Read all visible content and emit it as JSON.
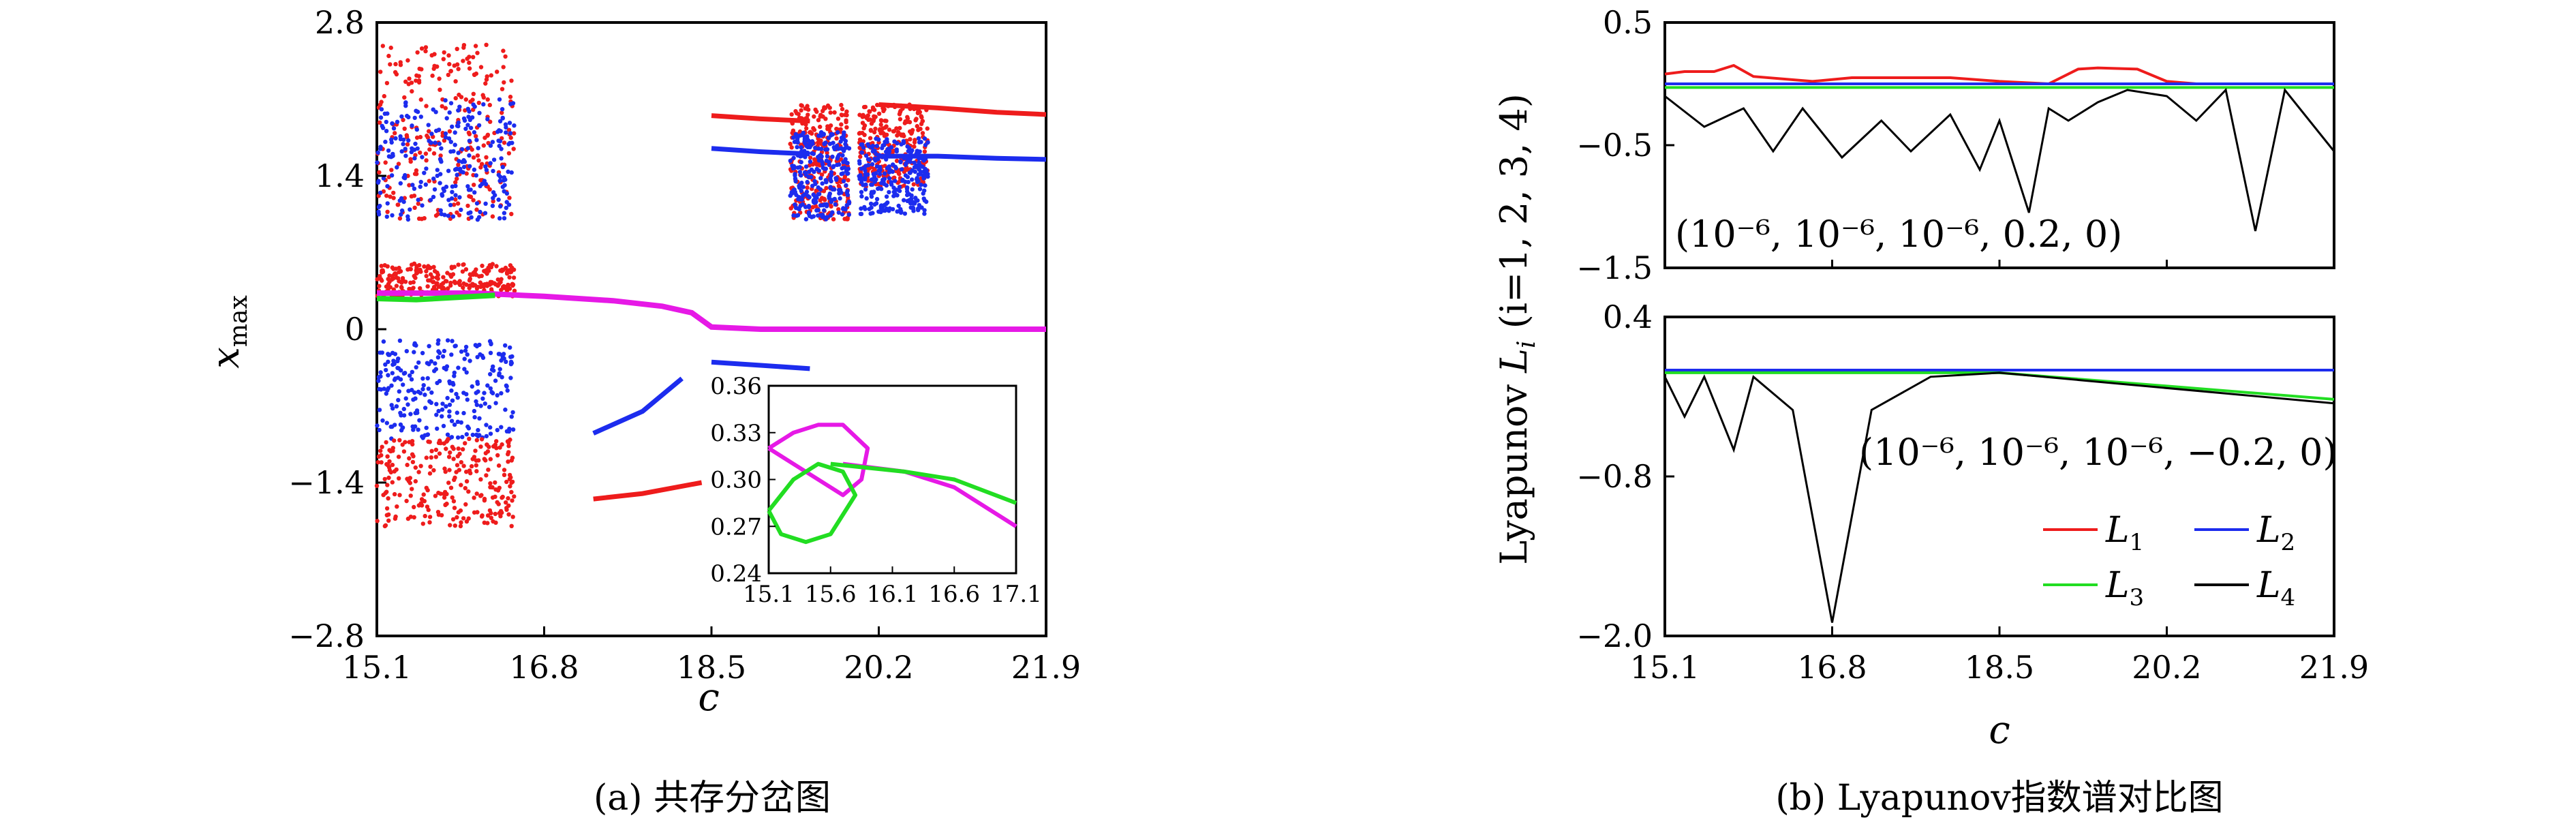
{
  "chart_data": [
    {
      "panel": "a",
      "type": "scatter",
      "caption": "(a) 共存分岔图",
      "xlabel": "c",
      "ylabel_main": "x",
      "ylabel_sub": "max",
      "xlim": [
        15.1,
        21.9
      ],
      "ylim": [
        -2.8,
        2.8
      ],
      "xticks": [
        "15.1",
        "16.8",
        "18.5",
        "20.2",
        "21.9"
      ],
      "yticks": [
        "2.8",
        "1.4",
        "0",
        "−1.4",
        "−2.8"
      ],
      "series_colors": {
        "red": "#ee1c1c",
        "blue": "#1c2cee",
        "green": "#22dd22",
        "magenta": "#e619e6"
      },
      "fixed_point_branches": [
        {
          "color": "magenta",
          "x": [
            15.1,
            15.6,
            16.1,
            16.8,
            17.5,
            18.0,
            18.3,
            18.5,
            19.0,
            21.9
          ],
          "y": [
            0.33,
            0.33,
            0.33,
            0.3,
            0.26,
            0.21,
            0.15,
            0.02,
            0.0,
            0.0
          ]
        },
        {
          "color": "green",
          "x": [
            15.1,
            15.5,
            15.9,
            16.3
          ],
          "y": [
            0.28,
            0.27,
            0.29,
            0.31
          ]
        }
      ],
      "periodic_branches": [
        {
          "color": "red",
          "x": [
            20.2,
            20.8,
            21.4,
            21.9
          ],
          "y": [
            2.05,
            2.02,
            1.98,
            1.96
          ]
        },
        {
          "color": "blue",
          "x": [
            20.2,
            20.8,
            21.4,
            21.9
          ],
          "y": [
            1.58,
            1.58,
            1.56,
            1.55
          ]
        },
        {
          "color": "red",
          "x": [
            18.5,
            19.0,
            19.5
          ],
          "y": [
            1.95,
            1.92,
            1.9
          ]
        },
        {
          "color": "blue",
          "x": [
            18.5,
            19.0,
            19.5
          ],
          "y": [
            1.65,
            1.62,
            1.6
          ]
        },
        {
          "color": "blue",
          "x": [
            18.5,
            19.0,
            19.5
          ],
          "y": [
            -0.3,
            -0.33,
            -0.36
          ]
        },
        {
          "color": "red",
          "x": [
            17.3,
            17.8,
            18.4
          ],
          "y": [
            -1.55,
            -1.5,
            -1.4
          ]
        },
        {
          "color": "blue",
          "x": [
            17.3,
            17.8,
            18.2
          ],
          "y": [
            -0.95,
            -0.75,
            -0.45
          ]
        }
      ],
      "chaotic_bands": [
        {
          "color": "red",
          "x_range": [
            15.1,
            16.5
          ],
          "y_range": [
            1.0,
            2.6
          ]
        },
        {
          "color": "blue",
          "x_range": [
            15.1,
            16.5
          ],
          "y_range": [
            1.0,
            2.1
          ]
        },
        {
          "color": "red",
          "x_range": [
            15.1,
            16.5
          ],
          "y_range": [
            0.3,
            0.6
          ]
        },
        {
          "color": "blue",
          "x_range": [
            15.1,
            16.5
          ],
          "y_range": [
            -1.0,
            -0.1
          ]
        },
        {
          "color": "red",
          "x_range": [
            15.1,
            16.5
          ],
          "y_range": [
            -1.8,
            -1.0
          ]
        },
        {
          "color": "red",
          "x_range": [
            19.3,
            19.9
          ],
          "y_range": [
            1.0,
            2.05
          ]
        },
        {
          "color": "blue",
          "x_range": [
            19.3,
            19.9
          ],
          "y_range": [
            1.0,
            1.8
          ]
        },
        {
          "color": "red",
          "x_range": [
            20.0,
            20.7
          ],
          "y_range": [
            1.3,
            2.05
          ]
        },
        {
          "color": "blue",
          "x_range": [
            20.0,
            20.7
          ],
          "y_range": [
            1.05,
            1.75
          ]
        }
      ],
      "inset": {
        "xlim": [
          15.1,
          17.1
        ],
        "ylim": [
          0.24,
          0.36
        ],
        "xticks": [
          "15.1",
          "15.6",
          "16.1",
          "16.6",
          "17.1"
        ],
        "yticks": [
          "0.36",
          "0.33",
          "0.30",
          "0.27",
          "0.24"
        ],
        "series": [
          {
            "color": "magenta",
            "x": [
              15.1,
              15.3,
              15.5,
              15.7,
              15.9,
              15.85,
              15.7,
              15.5,
              15.3,
              15.1
            ],
            "y": [
              0.32,
              0.33,
              0.335,
              0.335,
              0.32,
              0.3,
              0.29,
              0.3,
              0.31,
              0.32
            ]
          },
          {
            "color": "magenta",
            "x": [
              15.7,
              16.2,
              16.6,
              17.1
            ],
            "y": [
              0.31,
              0.305,
              0.295,
              0.27
            ]
          },
          {
            "color": "green",
            "x": [
              15.1,
              15.2,
              15.4,
              15.6,
              15.8,
              15.7,
              15.5,
              15.3,
              15.1
            ],
            "y": [
              0.28,
              0.265,
              0.26,
              0.265,
              0.29,
              0.305,
              0.31,
              0.3,
              0.28
            ]
          },
          {
            "color": "green",
            "x": [
              15.6,
              16.2,
              16.6,
              17.1
            ],
            "y": [
              0.31,
              0.305,
              0.3,
              0.285
            ]
          }
        ]
      }
    },
    {
      "panel": "b",
      "type": "line",
      "caption": "(b) Lyapunov指数谱对比图",
      "xlabel": "c",
      "ylabel_prefix": "Lyapunov ",
      "ylabel_math": "L",
      "ylabel_sub": "i",
      "ylabel_suffix": " (i=1, 2, 3, 4)",
      "xlim": [
        15.1,
        21.9
      ],
      "xticks": [
        "15.1",
        "16.8",
        "18.5",
        "20.2",
        "21.9"
      ],
      "top": {
        "ylim": [
          -1.5,
          0.5
        ],
        "yticks": [
          "0.5",
          "−0.5",
          "−1.5"
        ],
        "annotation": "(10⁻⁶, 10⁻⁶, 10⁻⁶, 0.2, 0)",
        "series": [
          {
            "name": "L1",
            "color": "#ee1c1c",
            "x": [
              15.1,
              15.3,
              15.6,
              15.8,
              16.0,
              16.6,
              17.0,
              17.5,
              18.0,
              18.5,
              19.0,
              19.3,
              19.5,
              19.9,
              20.2,
              20.5,
              21.0,
              21.9
            ],
            "y": [
              0.08,
              0.1,
              0.1,
              0.15,
              0.06,
              0.02,
              0.05,
              0.05,
              0.05,
              0.02,
              0.0,
              0.12,
              0.13,
              0.12,
              0.02,
              0.0,
              0.0,
              0.0
            ]
          },
          {
            "name": "L2",
            "color": "#1c2cee",
            "x": [
              15.1,
              21.9
            ],
            "y": [
              0.0,
              0.0
            ]
          },
          {
            "name": "L3",
            "color": "#22dd22",
            "x": [
              15.1,
              21.9
            ],
            "y": [
              -0.03,
              -0.03
            ]
          },
          {
            "name": "L4",
            "color": "#000000",
            "x": [
              15.1,
              15.5,
              15.9,
              16.2,
              16.5,
              16.9,
              17.3,
              17.6,
              18.0,
              18.3,
              18.5,
              18.8,
              19.0,
              19.2,
              19.5,
              19.8,
              20.2,
              20.5,
              20.8,
              21.1,
              21.4,
              21.9
            ],
            "y": [
              -0.1,
              -0.35,
              -0.2,
              -0.55,
              -0.2,
              -0.6,
              -0.3,
              -0.55,
              -0.25,
              -0.7,
              -0.3,
              -1.05,
              -0.2,
              -0.3,
              -0.15,
              -0.05,
              -0.1,
              -0.3,
              -0.05,
              -1.2,
              -0.05,
              -0.55
            ]
          }
        ]
      },
      "bottom": {
        "ylim": [
          -2.0,
          0.4
        ],
        "yticks": [
          "0.4",
          "−0.8",
          "−2.0"
        ],
        "annotation": "(10⁻⁶, 10⁻⁶, 10⁻⁶, −0.2, 0)",
        "series": [
          {
            "name": "L1",
            "color": "#ee1c1c",
            "x": [
              15.1,
              18.5
            ],
            "y": [
              0.0,
              0.0
            ]
          },
          {
            "name": "L2",
            "color": "#1c2cee",
            "x": [
              15.1,
              21.9
            ],
            "y": [
              0.0,
              0.0
            ]
          },
          {
            "name": "L3",
            "color": "#22dd22",
            "x": [
              15.1,
              18.5,
              21.9
            ],
            "y": [
              -0.02,
              -0.02,
              -0.22
            ]
          },
          {
            "name": "L4",
            "color": "#000000",
            "x": [
              15.1,
              15.3,
              15.5,
              15.8,
              16.0,
              16.4,
              16.8,
              17.2,
              17.8,
              18.5,
              21.9
            ],
            "y": [
              -0.05,
              -0.35,
              -0.05,
              -0.6,
              -0.05,
              -0.3,
              -1.9,
              -0.3,
              -0.05,
              -0.02,
              -0.25
            ]
          }
        ],
        "legend": {
          "placement": "lower-right",
          "entries": [
            {
              "main": "L",
              "sub": "1",
              "color": "#ee1c1c"
            },
            {
              "main": "L",
              "sub": "2",
              "color": "#1c2cee"
            },
            {
              "main": "L",
              "sub": "3",
              "color": "#22dd22"
            },
            {
              "main": "L",
              "sub": "4",
              "color": "#000000"
            }
          ]
        }
      }
    }
  ]
}
